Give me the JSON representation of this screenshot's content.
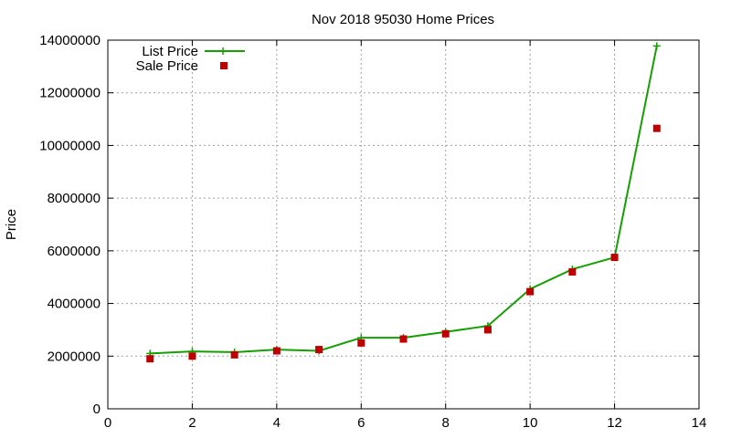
{
  "chart_data": {
    "type": "line",
    "title": "Nov 2018 95030 Home Prices",
    "xlabel": "",
    "ylabel": "Price",
    "xlim": [
      0,
      14
    ],
    "ylim": [
      0,
      14000000
    ],
    "xticks": [
      0,
      2,
      4,
      6,
      8,
      10,
      12,
      14
    ],
    "yticks": [
      0,
      2000000,
      4000000,
      6000000,
      8000000,
      10000000,
      12000000,
      14000000
    ],
    "grid": true,
    "legend_position": "top-left",
    "series": [
      {
        "name": "List Price",
        "style": "lines+points",
        "marker": "plus",
        "color": "#13a000",
        "x": [
          1,
          2,
          3,
          4,
          5,
          6,
          7,
          8,
          9,
          10,
          11,
          12,
          13
        ],
        "values": [
          2100000,
          2180000,
          2150000,
          2250000,
          2200000,
          2700000,
          2700000,
          2920000,
          3150000,
          4550000,
          5300000,
          5750000,
          13780000
        ]
      },
      {
        "name": "Sale Price",
        "style": "points",
        "marker": "square",
        "color": "#c00000",
        "x": [
          1,
          2,
          3,
          4,
          5,
          6,
          7,
          8,
          9,
          10,
          11,
          12,
          13
        ],
        "values": [
          1900000,
          2000000,
          2050000,
          2200000,
          2250000,
          2500000,
          2650000,
          2850000,
          3000000,
          4450000,
          5200000,
          5750000,
          10650000
        ]
      }
    ]
  }
}
